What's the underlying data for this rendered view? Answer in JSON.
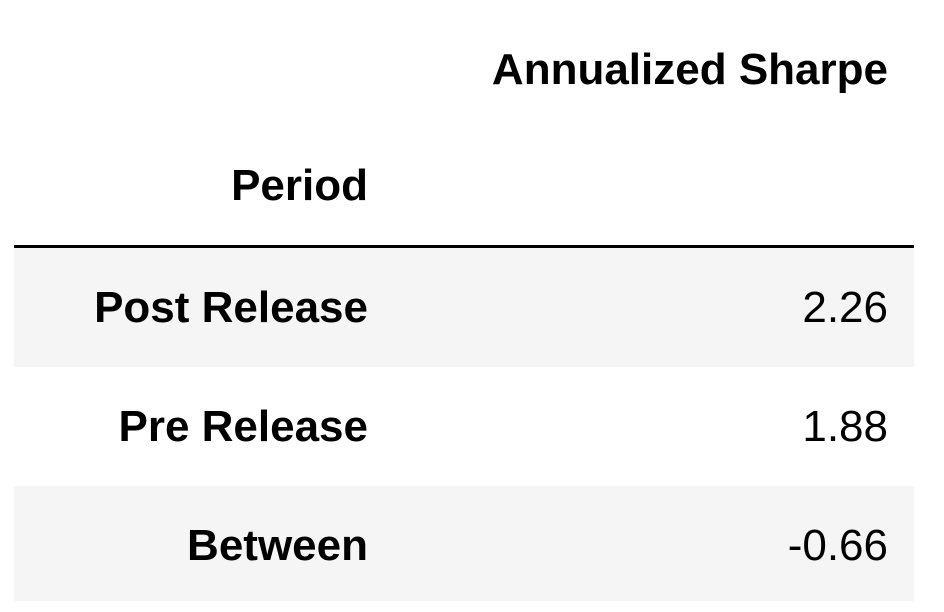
{
  "table": {
    "columns": [
      "Annualized Sharpe"
    ],
    "index_name": "Period",
    "rows": [
      {
        "label": "Post Release",
        "value": "2.26"
      },
      {
        "label": "Pre Release",
        "value": "1.88"
      },
      {
        "label": "Between",
        "value": "-0.66"
      }
    ]
  },
  "colors": {
    "striped_row": "#f5f5f5",
    "text": "#000000",
    "rule": "#000000"
  }
}
